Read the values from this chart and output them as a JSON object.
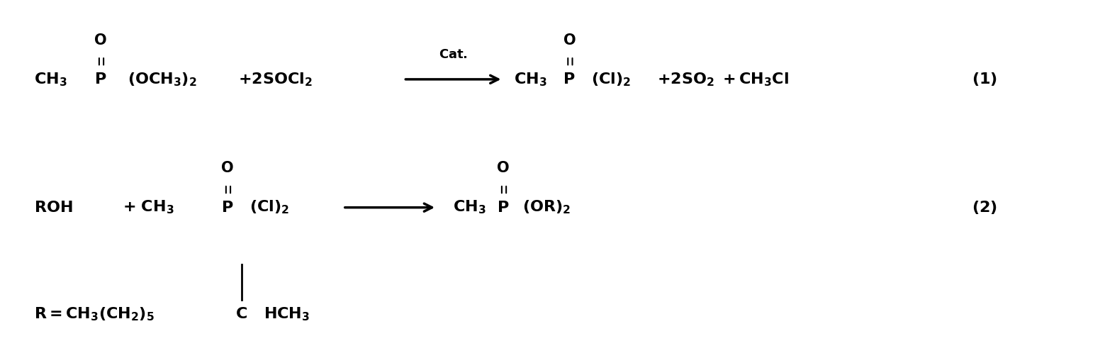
{
  "background_color": "#ffffff",
  "figsize": [
    15.59,
    5.05
  ],
  "dpi": 100,
  "rxn1": {
    "reactant1": "CH$_3$ $\\overset{O}{\\overset{\\|}{P}}$(OCH$_3$)$_2$",
    "plus1": " +2SOCl$_2$",
    "arrow_label": "Cat.",
    "product1": "CH$_3$ $\\overset{O}{\\overset{\\|}{P}}$(Cl)$_2$",
    "product2": " +2SO$_2$ +CH$_3$Cl",
    "eq_num": "(1)"
  },
  "rxn2": {
    "reactant1": "ROH",
    "plus1": " + CH$_3$ $\\overset{O}{\\overset{\\|}{P}}$(Cl)$_2$",
    "product1": "CH$_3$ $\\overset{O}{\\overset{\\|}{P}}$(OR)$_2$",
    "eq_num": "(2)"
  },
  "r_def": "R = CH$_3$(CH$_2$)$_5$$\\overset{|}{\\text{C}}$HCH$_3$",
  "font_size": 16,
  "font_size_label": 13,
  "text_color": "#000000"
}
